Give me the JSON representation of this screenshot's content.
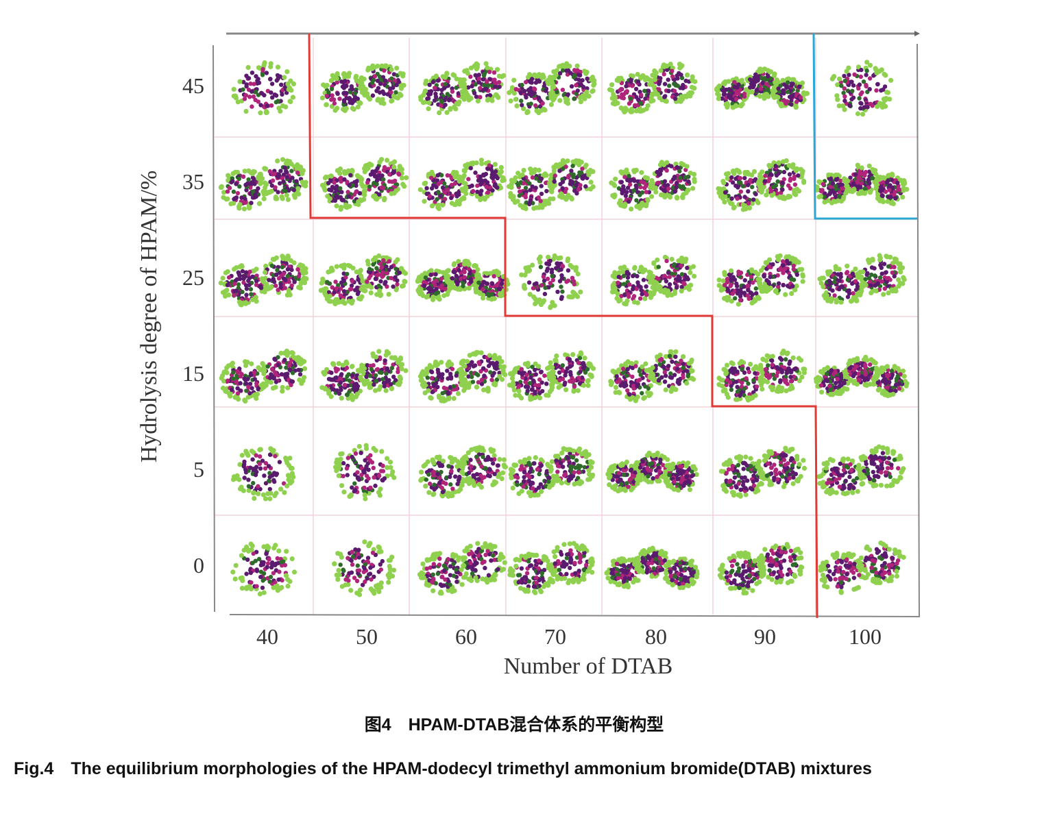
{
  "figure": {
    "x_axis": {
      "label": "Number of DTAB",
      "ticks": [
        "40",
        "50",
        "60",
        "70",
        "80",
        "90",
        "100"
      ]
    },
    "y_axis": {
      "label": "Hydrolysis degree of HPAM/%",
      "ticks": [
        "45",
        "35",
        "25",
        "15",
        "5",
        "0"
      ]
    },
    "colors": {
      "red_boundary": "#e03a36",
      "blue_boundary": "#2aa7d6",
      "grid": "#f0d4d8",
      "head_green": "#8fd14f",
      "tail_purple": "#5a1a6e",
      "magenta": "#b0247a"
    }
  },
  "caption": {
    "cn": "图4　HPAM-DTAB混合体系的平衡构型",
    "en": "Fig.4　The equilibrium morphologies of the HPAM-dodecyl trimethyl ammonium bromide(DTAB) mixtures"
  }
}
